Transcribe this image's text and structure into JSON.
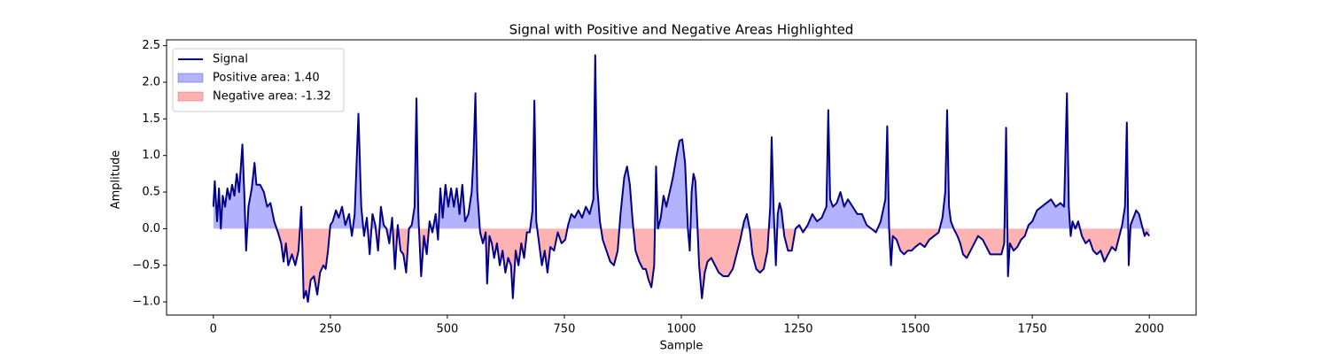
{
  "chart_data": {
    "type": "line",
    "title": "Signal with Positive and Negative Areas Highlighted",
    "x_label": "Sample",
    "y_label": "Amplitude",
    "x": [
      0,
      3,
      8,
      12,
      16,
      20,
      25,
      30,
      35,
      40,
      45,
      50,
      55,
      62,
      66,
      70,
      75,
      82,
      88,
      92,
      100,
      108,
      115,
      122,
      130,
      138,
      145,
      150,
      155,
      160,
      168,
      175,
      182,
      188,
      193,
      198,
      202,
      208,
      215,
      222,
      228,
      235,
      240,
      245,
      250,
      255,
      262,
      268,
      275,
      282,
      290,
      296,
      302,
      310,
      316,
      322,
      328,
      334,
      340,
      346,
      352,
      358,
      364,
      370,
      376,
      382,
      388,
      394,
      400,
      406,
      412,
      418,
      424,
      430,
      434,
      438,
      444,
      450,
      456,
      462,
      468,
      475,
      480,
      485,
      490,
      496,
      502,
      508,
      514,
      520,
      526,
      532,
      538,
      545,
      552,
      556,
      560,
      564,
      570,
      576,
      582,
      585,
      590,
      595,
      600,
      606,
      612,
      618,
      624,
      630,
      636,
      640,
      646,
      652,
      658,
      664,
      670,
      676,
      682,
      686,
      690,
      696,
      702,
      708,
      714,
      720,
      728,
      736,
      744,
      752,
      758,
      765,
      772,
      780,
      788,
      796,
      804,
      812,
      816,
      820,
      826,
      832,
      840,
      848,
      856,
      864,
      870,
      878,
      884,
      890,
      896,
      902,
      910,
      918,
      924,
      930,
      936,
      942,
      946,
      950,
      956,
      962,
      968,
      975,
      982,
      990,
      996,
      1002,
      1008,
      1014,
      1018,
      1022,
      1026,
      1030,
      1034,
      1038,
      1044,
      1050,
      1056,
      1064,
      1072,
      1080,
      1090,
      1100,
      1110,
      1118,
      1126,
      1134,
      1140,
      1146,
      1152,
      1160,
      1168,
      1176,
      1184,
      1190,
      1193,
      1197,
      1202,
      1206,
      1210,
      1214,
      1220,
      1228,
      1236,
      1244,
      1252,
      1260,
      1270,
      1280,
      1290,
      1300,
      1310,
      1314,
      1318,
      1324,
      1332,
      1340,
      1348,
      1356,
      1366,
      1376,
      1386,
      1396,
      1406,
      1416,
      1426,
      1436,
      1440,
      1444,
      1448,
      1452,
      1460,
      1468,
      1476,
      1484,
      1492,
      1500,
      1510,
      1520,
      1530,
      1540,
      1550,
      1558,
      1564,
      1568,
      1572,
      1576,
      1582,
      1590,
      1596,
      1602,
      1610,
      1618,
      1626,
      1634,
      1644,
      1652,
      1660,
      1668,
      1676,
      1684,
      1690,
      1694,
      1698,
      1702,
      1710,
      1718,
      1726,
      1734,
      1742,
      1750,
      1760,
      1770,
      1780,
      1790,
      1800,
      1810,
      1818,
      1824,
      1828,
      1832,
      1836,
      1842,
      1848,
      1856,
      1864,
      1872,
      1880,
      1888,
      1896,
      1904,
      1912,
      1920,
      1928,
      1936,
      1942,
      1948,
      1952,
      1956,
      1960,
      1966,
      1972,
      1978,
      1984,
      1990,
      1994,
      2000
    ],
    "series": [
      {
        "name": "Signal",
        "color": "#00008b",
        "values": [
          0.3,
          0.65,
          0.1,
          0.55,
          0.0,
          0.45,
          0.3,
          0.55,
          0.4,
          0.6,
          0.45,
          0.75,
          0.5,
          1.15,
          0.5,
          -0.3,
          0.3,
          0.55,
          0.9,
          0.6,
          0.6,
          0.5,
          0.3,
          0.35,
          0.1,
          -0.05,
          -0.2,
          -0.45,
          -0.2,
          -0.5,
          -0.35,
          -0.5,
          -0.3,
          0.3,
          -0.95,
          -0.85,
          -1.0,
          -0.7,
          -0.65,
          -0.9,
          -0.6,
          -0.5,
          -0.55,
          -0.3,
          0.05,
          0.1,
          0.25,
          0.15,
          0.3,
          0.05,
          0.2,
          -0.1,
          0.2,
          1.57,
          0.3,
          -0.1,
          0.15,
          -0.35,
          0.2,
          0.05,
          -0.3,
          0.3,
          0.05,
          0.0,
          -0.2,
          0.15,
          -0.55,
          0.05,
          -0.3,
          -0.35,
          -0.6,
          0.0,
          0.05,
          0.3,
          1.78,
          0.2,
          -0.65,
          -0.1,
          -0.35,
          0.1,
          -0.05,
          0.2,
          -0.15,
          0.55,
          0.15,
          0.6,
          0.3,
          0.55,
          0.3,
          0.55,
          0.2,
          0.6,
          0.1,
          0.2,
          0.5,
          1.0,
          1.85,
          0.5,
          -0.05,
          -0.2,
          -0.05,
          -0.75,
          -0.1,
          -0.2,
          -0.4,
          -0.2,
          -0.5,
          -0.3,
          -0.6,
          -0.4,
          -0.5,
          -0.95,
          -0.3,
          -0.5,
          -0.2,
          -0.4,
          -0.05,
          -0.05,
          0.25,
          1.75,
          0.1,
          -0.2,
          -0.5,
          -0.3,
          -0.6,
          -0.25,
          -0.3,
          -0.05,
          -0.2,
          -0.15,
          0.05,
          0.2,
          0.15,
          0.25,
          0.15,
          0.3,
          0.2,
          0.4,
          2.37,
          0.6,
          0.1,
          -0.15,
          -0.3,
          -0.45,
          -0.5,
          -0.3,
          0.2,
          0.7,
          0.85,
          0.6,
          0.1,
          -0.3,
          -0.45,
          -0.55,
          -0.55,
          -0.7,
          -0.8,
          -0.5,
          0.85,
          0.0,
          0.15,
          0.45,
          0.3,
          0.5,
          0.7,
          1.0,
          1.2,
          1.22,
          0.9,
          0.0,
          -0.3,
          0.5,
          0.75,
          0.65,
          0.1,
          -0.5,
          -0.95,
          -0.6,
          -0.45,
          -0.4,
          -0.5,
          -0.6,
          -0.65,
          -0.65,
          -0.55,
          -0.35,
          -0.15,
          0.1,
          0.2,
          0.0,
          -0.35,
          -0.55,
          -0.6,
          -0.55,
          -0.3,
          0.3,
          1.25,
          0.3,
          -0.5,
          0.2,
          0.35,
          0.25,
          -0.1,
          -0.3,
          -0.3,
          0.0,
          0.05,
          -0.05,
          0.05,
          0.2,
          0.1,
          0.15,
          0.3,
          1.62,
          0.4,
          0.3,
          0.35,
          0.5,
          0.3,
          0.4,
          0.3,
          0.2,
          0.2,
          0.05,
          0.0,
          -0.05,
          0.1,
          0.4,
          1.4,
          0.0,
          -0.5,
          -0.1,
          -0.15,
          -0.3,
          -0.35,
          -0.3,
          -0.3,
          -0.25,
          -0.2,
          -0.25,
          -0.15,
          -0.1,
          -0.05,
          0.15,
          0.5,
          1.62,
          0.3,
          0.1,
          0.0,
          -0.1,
          -0.2,
          -0.35,
          -0.4,
          -0.3,
          -0.2,
          -0.1,
          -0.15,
          -0.25,
          -0.35,
          -0.35,
          -0.35,
          -0.35,
          -0.2,
          1.38,
          -0.65,
          -0.2,
          -0.3,
          -0.25,
          -0.15,
          -0.1,
          0.05,
          0.1,
          0.25,
          0.3,
          0.35,
          0.4,
          0.3,
          0.35,
          0.3,
          1.85,
          0.3,
          -0.1,
          0.1,
          0.0,
          0.1,
          -0.1,
          -0.2,
          -0.15,
          -0.3,
          -0.35,
          -0.3,
          -0.45,
          -0.35,
          -0.25,
          -0.3,
          -0.1,
          0.05,
          0.3,
          1.45,
          -0.5,
          0.05,
          0.15,
          0.25,
          0.2,
          0.05,
          -0.1,
          -0.05,
          -0.1
        ]
      }
    ],
    "areas": [
      {
        "name": "Positive area: 1.40",
        "color": "#0000ff"
      },
      {
        "name": "Negative area: -1.32",
        "color": "#ff0000"
      }
    ],
    "xlim": [
      -100,
      2100
    ],
    "ylim": [
      -1.18,
      2.58
    ],
    "xticks": [
      0,
      250,
      500,
      750,
      1000,
      1250,
      1500,
      1750,
      2000
    ],
    "yticks": [
      {
        "value": -1,
        "label": "−1.0"
      },
      {
        "value": -0.5,
        "label": "−0.5"
      },
      {
        "value": 0,
        "label": "0.0"
      },
      {
        "value": 0.5,
        "label": "0.5"
      },
      {
        "value": 1,
        "label": "1.0"
      },
      {
        "value": 1.5,
        "label": "1.5"
      },
      {
        "value": 2,
        "label": "2.0"
      },
      {
        "value": 2.5,
        "label": "2.5"
      }
    ],
    "legend": "upper left",
    "grid": false
  }
}
